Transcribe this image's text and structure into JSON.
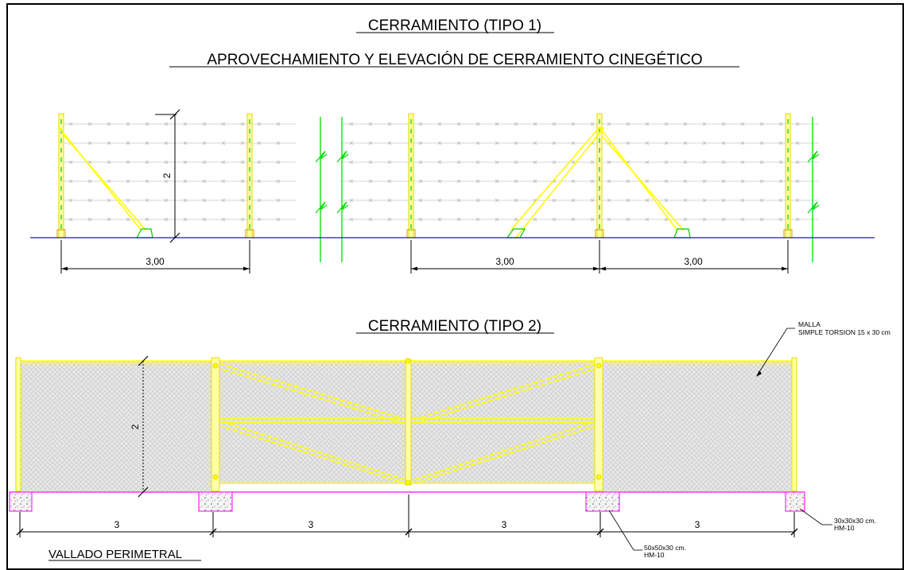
{
  "colors": {
    "frame": "#000000",
    "post": "#ffff00",
    "post_outline": "#e0d800",
    "wire": "#c8c8c8",
    "ground": "#1a1aa0",
    "break_line": "#00dd00",
    "footing_line": "#ff00ff",
    "mesh_fill": "#dcdcdc",
    "dimension": "#000000"
  },
  "tipo1": {
    "title": "CERRAMIENTO (TIPO 1)",
    "subtitle": "APROVECHAMIENTO Y ELEVACIÓN DE CERRAMIENTO CINEGÉTICO",
    "height_label": "2",
    "span_labels": [
      "3,00",
      "3,00",
      "3,00"
    ]
  },
  "tipo2": {
    "title": "CERRAMIENTO (TIPO 2)",
    "height_label": "2",
    "span_labels": [
      "3",
      "3",
      "3",
      "3"
    ],
    "mesh_note_line1": "MALLA",
    "mesh_note_line2": "SIMPLE TORSION 15 x 30 cm",
    "footing_small_line1": "30x30x30 cm.",
    "footing_small_line2": "HM-10",
    "footing_large_line1": "50x50x30 cm.",
    "footing_large_line2": "HM-10",
    "footer_label": "VALLADO PERIMETRAL"
  }
}
